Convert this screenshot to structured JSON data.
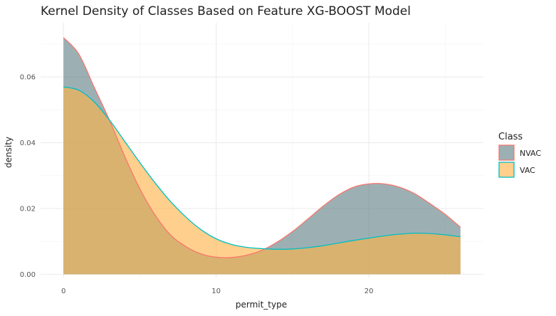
{
  "chart_data": {
    "type": "area",
    "title": "Kernel Density of Classes Based on Feature XG-BOOST Model",
    "xlabel": "permit_type",
    "ylabel": "density",
    "xlim": [
      -1.5,
      27.5
    ],
    "ylim": [
      -0.001,
      0.0765
    ],
    "x_ticks": [
      0,
      10,
      20
    ],
    "x_tick_labels": [
      "0",
      "10",
      "20"
    ],
    "y_ticks": [
      0,
      0.02,
      0.04,
      0.06
    ],
    "y_tick_labels": [
      "0.00",
      "0.02",
      "0.04",
      "0.06"
    ],
    "grid": true,
    "legend": {
      "title": "Class",
      "position": "right"
    },
    "series": [
      {
        "name": "NVAC",
        "fill": "#5f7f86",
        "stroke": "#f8766d",
        "points": [
          [
            0,
            0.072
          ],
          [
            1,
            0.067
          ],
          [
            2,
            0.057
          ],
          [
            3,
            0.047
          ],
          [
            4,
            0.036
          ],
          [
            5,
            0.026
          ],
          [
            6,
            0.018
          ],
          [
            7,
            0.012
          ],
          [
            8,
            0.0085
          ],
          [
            9,
            0.0062
          ],
          [
            10,
            0.0052
          ],
          [
            11,
            0.0051
          ],
          [
            12,
            0.0058
          ],
          [
            13,
            0.0073
          ],
          [
            14,
            0.0098
          ],
          [
            15,
            0.013
          ],
          [
            16,
            0.0168
          ],
          [
            17,
            0.0207
          ],
          [
            18,
            0.0241
          ],
          [
            19,
            0.0265
          ],
          [
            20,
            0.0275
          ],
          [
            21,
            0.0275
          ],
          [
            22,
            0.0265
          ],
          [
            23,
            0.0245
          ],
          [
            24,
            0.0215
          ],
          [
            25,
            0.0182
          ],
          [
            26,
            0.0143
          ]
        ]
      },
      {
        "name": "VAC",
        "fill": "#ffb347",
        "stroke": "#00bfc4",
        "points": [
          [
            0,
            0.057
          ],
          [
            1,
            0.056
          ],
          [
            2,
            0.0525
          ],
          [
            3,
            0.047
          ],
          [
            4,
            0.0405
          ],
          [
            5,
            0.034
          ],
          [
            6,
            0.0278
          ],
          [
            7,
            0.0222
          ],
          [
            8,
            0.0175
          ],
          [
            9,
            0.0136
          ],
          [
            10,
            0.0108
          ],
          [
            11,
            0.0091
          ],
          [
            12,
            0.0082
          ],
          [
            13,
            0.0078
          ],
          [
            14,
            0.0076
          ],
          [
            15,
            0.0077
          ],
          [
            16,
            0.0081
          ],
          [
            17,
            0.0087
          ],
          [
            18,
            0.0095
          ],
          [
            19,
            0.0103
          ],
          [
            20,
            0.011
          ],
          [
            21,
            0.0117
          ],
          [
            22,
            0.0122
          ],
          [
            23,
            0.0125
          ],
          [
            24,
            0.0124
          ],
          [
            25,
            0.012
          ],
          [
            26,
            0.0114
          ]
        ]
      }
    ]
  }
}
